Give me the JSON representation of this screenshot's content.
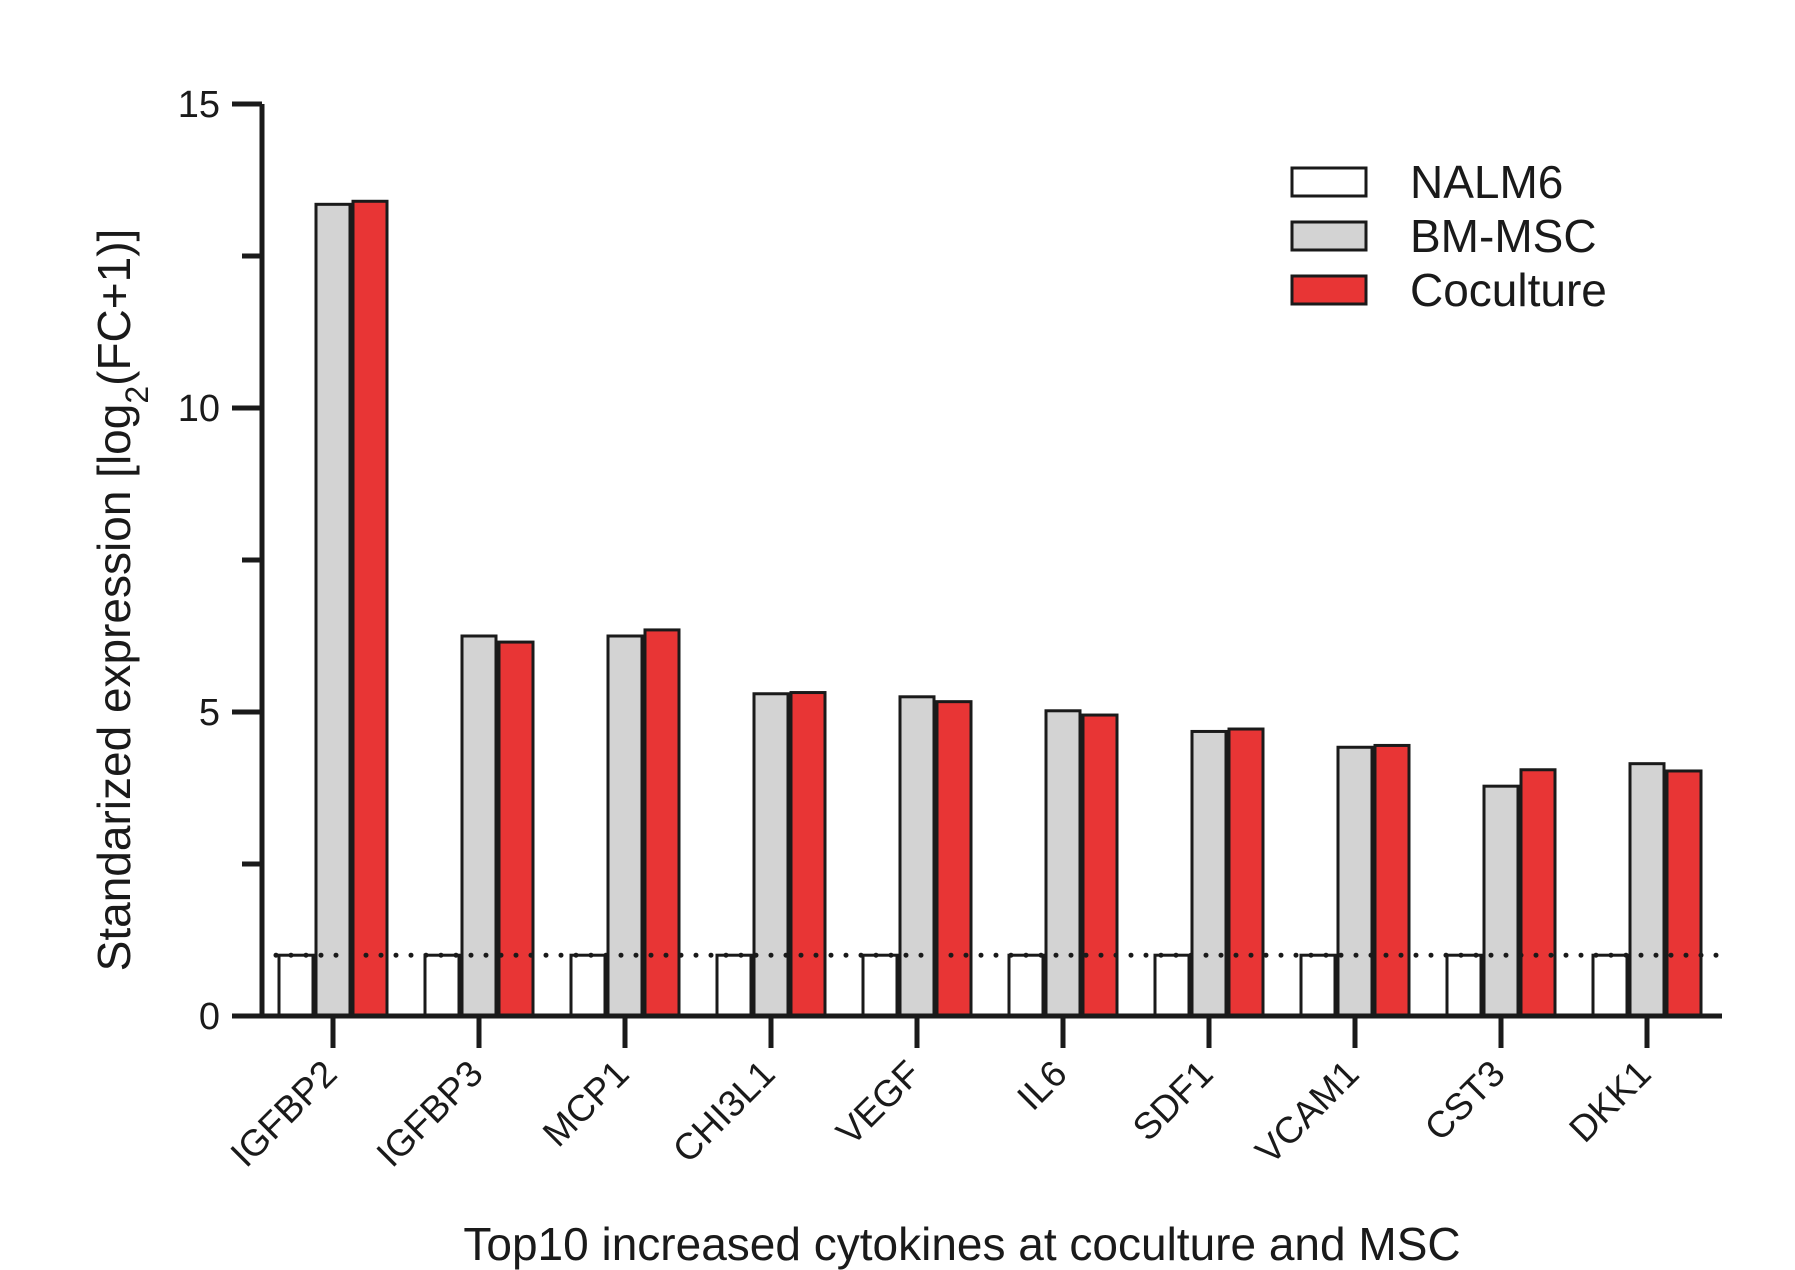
{
  "chart_data": {
    "type": "bar",
    "categories": [
      "IGFBP2",
      "IGFBP3",
      "MCP1",
      "CHI3L1",
      "VEGF",
      "IL6",
      "SDF1",
      "VCAM1",
      "CST3",
      "DKK1"
    ],
    "series": [
      {
        "name": "NALM6",
        "color": "#ffffff",
        "values": [
          1,
          1,
          1,
          1,
          1,
          1,
          1,
          1,
          1,
          1
        ]
      },
      {
        "name": "BM-MSC",
        "color": "#d3d3d3",
        "values": [
          13.35,
          6.25,
          6.25,
          5.3,
          5.25,
          5.02,
          4.68,
          4.42,
          3.78,
          4.15
        ]
      },
      {
        "name": "Coculture",
        "color": "#e83535",
        "values": [
          13.4,
          6.15,
          6.35,
          5.32,
          5.17,
          4.95,
          4.72,
          4.45,
          4.05,
          4.03
        ]
      }
    ],
    "ylabel_text": "Standarized expression [log",
    "ylabel_subscript": "2",
    "ylabel_suffix": "(FC+1)]",
    "xlabel": "Top10 increased cytokines at coculture and MSC",
    "ylim": [
      0,
      15
    ],
    "yticks": [
      0,
      5,
      10,
      15
    ],
    "yticks_labels": [
      "0",
      "5",
      "10",
      "15"
    ],
    "reference_line": 1,
    "legend_position": "top-right",
    "grid": false
  }
}
